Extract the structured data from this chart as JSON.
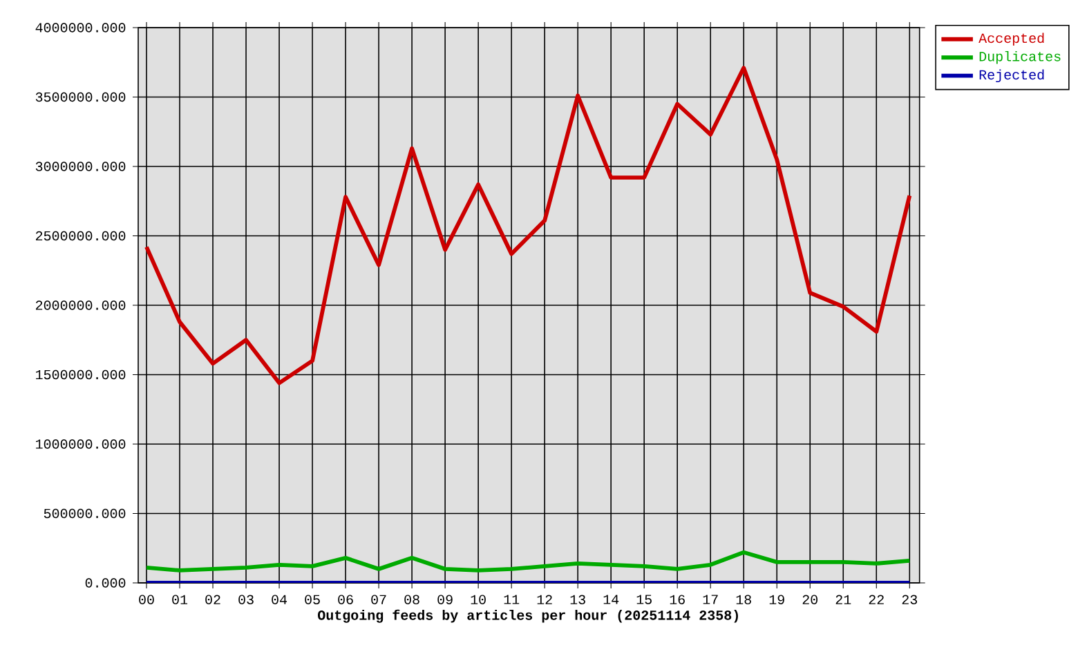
{
  "chart_data": {
    "type": "line",
    "xlabel": "Outgoing feeds by articles per hour (20251114 2358)",
    "categories": [
      "00",
      "01",
      "02",
      "03",
      "04",
      "05",
      "06",
      "07",
      "08",
      "09",
      "10",
      "11",
      "12",
      "13",
      "14",
      "15",
      "16",
      "17",
      "18",
      "19",
      "20",
      "21",
      "22",
      "23"
    ],
    "series": [
      {
        "name": "Accepted",
        "color": "#cc0000",
        "values": [
          2420000,
          1880000,
          1580000,
          1750000,
          1440000,
          1600000,
          2780000,
          2290000,
          3130000,
          2400000,
          2870000,
          2370000,
          2610000,
          3510000,
          2920000,
          2920000,
          3450000,
          3230000,
          3710000,
          3050000,
          2090000,
          1990000,
          1810000,
          2790000
        ]
      },
      {
        "name": "Duplicates",
        "color": "#00aa00",
        "values": [
          110000,
          90000,
          100000,
          110000,
          130000,
          120000,
          180000,
          100000,
          180000,
          100000,
          90000,
          100000,
          120000,
          140000,
          130000,
          120000,
          100000,
          130000,
          220000,
          150000,
          150000,
          150000,
          140000,
          160000
        ]
      },
      {
        "name": "Rejected",
        "color": "#0000aa",
        "values": [
          0,
          0,
          0,
          0,
          0,
          0,
          0,
          0,
          0,
          0,
          0,
          0,
          0,
          0,
          0,
          0,
          0,
          0,
          0,
          0,
          0,
          0,
          0,
          0
        ]
      }
    ],
    "ylim": [
      0,
      4000000
    ],
    "yticks": [
      {
        "value": 0,
        "label": "0.000"
      },
      {
        "value": 500000,
        "label": "500000.000"
      },
      {
        "value": 1000000,
        "label": "1000000.000"
      },
      {
        "value": 1500000,
        "label": "1500000.000"
      },
      {
        "value": 2000000,
        "label": "2000000.000"
      },
      {
        "value": 2500000,
        "label": "2500000.000"
      },
      {
        "value": 3000000,
        "label": "3000000.000"
      },
      {
        "value": 3500000,
        "label": "3500000.000"
      },
      {
        "value": 4000000,
        "label": "4000000.000"
      }
    ],
    "grid": true,
    "legend": "top right"
  }
}
